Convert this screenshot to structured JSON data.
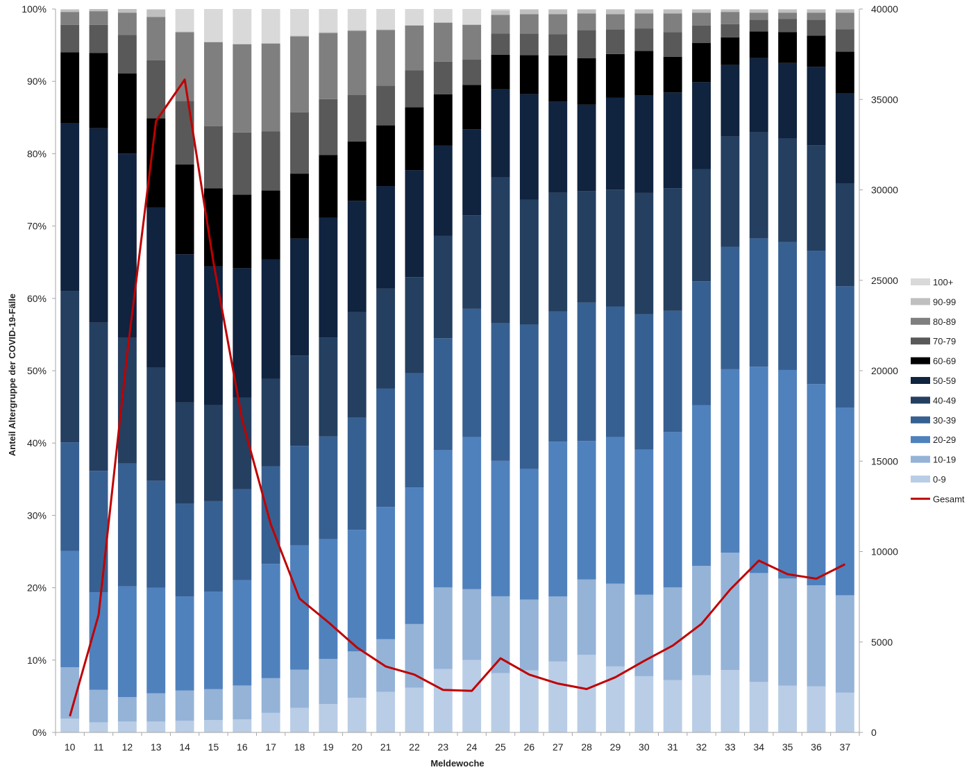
{
  "chart_data": {
    "type": "bar",
    "stacked": "percent",
    "xlabel": "Meldewoche",
    "ylabel": "Anteil Altergruppe der COVID-19-Fälle",
    "ylim": [
      0,
      100
    ],
    "y_ticks": [
      "0%",
      "10%",
      "20%",
      "30%",
      "40%",
      "50%",
      "60%",
      "70%",
      "80%",
      "90%",
      "100%"
    ],
    "y2lim": [
      0,
      40000
    ],
    "y2_ticks": [
      "0",
      "5000",
      "10000",
      "15000",
      "20000",
      "25000",
      "30000",
      "35000",
      "40000"
    ],
    "legend_position": "right",
    "categories": [
      "10",
      "11",
      "12",
      "13",
      "14",
      "15",
      "16",
      "17",
      "18",
      "19",
      "20",
      "21",
      "22",
      "23",
      "24",
      "25",
      "26",
      "27",
      "28",
      "29",
      "30",
      "31",
      "32",
      "33",
      "34",
      "35",
      "36",
      "37"
    ],
    "series": [
      {
        "name": "0-9",
        "color": "#b9cde6",
        "values": [
          1.9,
          1.4,
          1.5,
          1.5,
          1.6,
          1.7,
          1.8,
          2.7,
          3.4,
          3.9,
          4.8,
          5.6,
          6.2,
          8.8,
          10.0,
          8.2,
          8.6,
          9.8,
          10.7,
          9.1,
          7.8,
          7.2,
          7.9,
          8.6,
          7.0,
          6.5,
          6.4,
          5.5
        ]
      },
      {
        "name": "10-19",
        "color": "#95b3d7",
        "values": [
          7.1,
          4.5,
          3.4,
          3.9,
          4.2,
          4.3,
          4.7,
          4.8,
          5.3,
          6.2,
          6.4,
          7.3,
          8.8,
          11.3,
          9.8,
          10.6,
          9.8,
          9.0,
          10.4,
          11.4,
          11.3,
          12.8,
          15.1,
          16.2,
          15.1,
          14.9,
          14.0,
          13.5
        ]
      },
      {
        "name": "20-29",
        "color": "#4f81bd",
        "values": [
          16.1,
          13.5,
          15.3,
          14.6,
          13.0,
          13.5,
          14.6,
          15.8,
          17.2,
          16.5,
          16.8,
          18.3,
          18.9,
          19.0,
          21.0,
          18.7,
          18.1,
          21.4,
          19.1,
          20.2,
          20.1,
          21.4,
          22.2,
          25.3,
          28.6,
          29.0,
          27.9,
          26.0
        ]
      },
      {
        "name": "30-39",
        "color": "#376092",
        "values": [
          15.0,
          16.8,
          17.0,
          14.8,
          12.8,
          12.5,
          12.6,
          13.5,
          13.8,
          14.1,
          15.5,
          16.4,
          15.8,
          15.5,
          17.7,
          19.0,
          20.0,
          18.0,
          19.1,
          18.0,
          18.8,
          16.7,
          17.1,
          16.9,
          17.8,
          17.8,
          18.5,
          16.8
        ]
      },
      {
        "name": "40-49",
        "color": "#243f60",
        "values": [
          20.9,
          20.5,
          17.4,
          15.6,
          14.0,
          13.3,
          12.7,
          12.1,
          12.5,
          13.6,
          14.6,
          13.8,
          13.3,
          14.2,
          12.9,
          20.2,
          17.3,
          16.4,
          15.4,
          16.1,
          16.8,
          16.9,
          15.5,
          15.2,
          14.7,
          14.4,
          14.6,
          14.2
        ]
      },
      {
        "name": "50-59",
        "color": "#10233f",
        "values": [
          23.2,
          26.9,
          25.5,
          22.2,
          20.5,
          19.2,
          17.9,
          16.5,
          16.2,
          16.5,
          15.4,
          14.2,
          14.8,
          12.5,
          11.9,
          12.1,
          14.6,
          12.6,
          11.9,
          12.7,
          13.5,
          13.2,
          12.0,
          9.9,
          10.3,
          10.5,
          10.9,
          12.5
        ]
      },
      {
        "name": "60-69",
        "color": "#000000",
        "values": [
          9.8,
          10.4,
          11.1,
          12.3,
          12.4,
          10.8,
          10.2,
          9.5,
          9.0,
          8.6,
          8.2,
          8.4,
          8.7,
          7.1,
          6.1,
          4.8,
          5.4,
          6.4,
          6.4,
          6.0,
          6.2,
          4.9,
          5.4,
          3.8,
          3.7,
          4.3,
          4.3,
          5.8
        ]
      },
      {
        "name": "70-79",
        "color": "#595959",
        "values": [
          3.8,
          3.9,
          5.3,
          8.0,
          8.8,
          8.6,
          8.6,
          8.2,
          8.5,
          7.7,
          6.4,
          5.5,
          5.1,
          4.5,
          3.5,
          2.9,
          3.0,
          2.9,
          3.9,
          3.4,
          3.1,
          3.4,
          2.4,
          1.8,
          1.6,
          1.8,
          2.2,
          3.1
        ]
      },
      {
        "name": "80-89",
        "color": "#7f7f7f",
        "values": [
          1.8,
          1.9,
          3.1,
          6.0,
          9.5,
          11.6,
          12.2,
          12.1,
          10.5,
          9.1,
          8.9,
          7.7,
          6.2,
          5.4,
          4.8,
          2.6,
          2.7,
          2.8,
          2.3,
          2.1,
          2.1,
          2.6,
          1.8,
          1.7,
          1.0,
          0.9,
          1.0,
          2.3
        ]
      },
      {
        "name": "90-99",
        "color": "#bfbfbf",
        "values": [
          0.3,
          0.3,
          0.5,
          1.0,
          0.1,
          0.1,
          0.1,
          0.1,
          0.1,
          0.1,
          0.1,
          0.1,
          0.1,
          0.1,
          0.1,
          0.6,
          0.6,
          0.6,
          0.5,
          0.6,
          0.5,
          0.5,
          0.4,
          0.3,
          0.4,
          0.4,
          0.4,
          0.4
        ]
      },
      {
        "name": "100+",
        "color": "#d9d9d9",
        "values": [
          0.1,
          0.0,
          0.0,
          0.1,
          3.1,
          4.5,
          4.8,
          4.7,
          3.7,
          3.2,
          2.9,
          2.8,
          2.2,
          1.8,
          2.1,
          0.2,
          0.1,
          0.1,
          0.1,
          0.1,
          0.1,
          0.1,
          0.1,
          0.1,
          0.1,
          0.1,
          0.1,
          0.1
        ]
      }
    ],
    "line_series": {
      "name": "Gesamt",
      "color": "#c00000",
      "axis": "secondary",
      "values": [
        900,
        6500,
        21000,
        33800,
        36100,
        26000,
        17300,
        11500,
        7400,
        6100,
        4700,
        3650,
        3200,
        2350,
        2300,
        4100,
        3200,
        2700,
        2400,
        3050,
        3950,
        4800,
        6000,
        7900,
        9500,
        8750,
        8500,
        9300
      ]
    }
  }
}
